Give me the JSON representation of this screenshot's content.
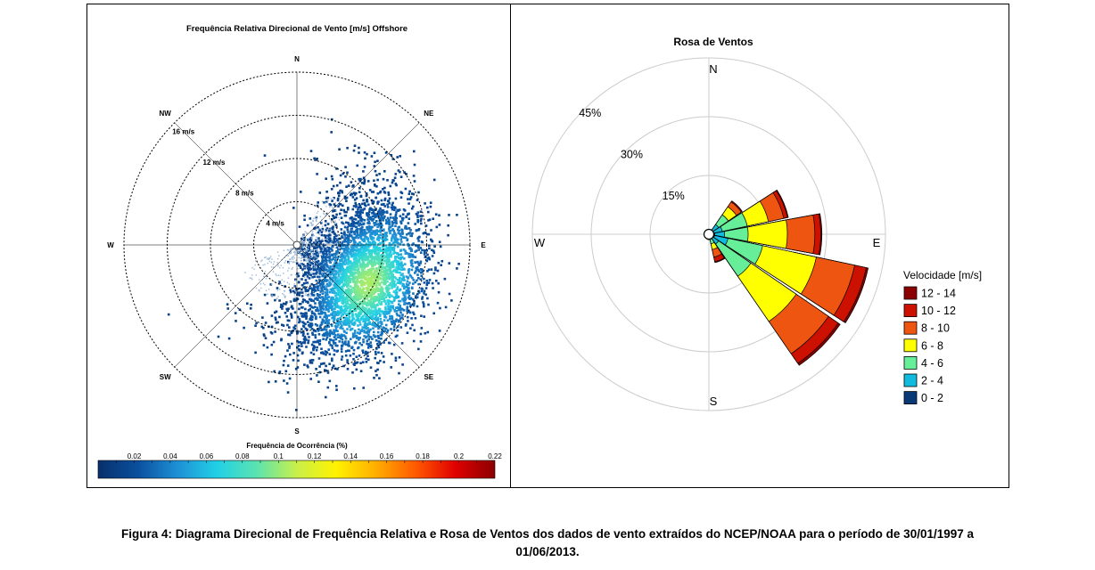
{
  "figure_caption_line1": "Figura 4: Diagrama Direcional de Frequência Relativa e Rosa de Ventos dos dados de vento extraídos  do NCEP/NOAA para o período de 30/01/1997 a",
  "figure_caption_line2": "01/06/2013.",
  "chart_data": [
    {
      "type": "scatter",
      "title": "Frequência Relativa Direcional de Vento [m/s] Offshore",
      "radial_rings": [
        4,
        8,
        12,
        16
      ],
      "radial_labels": [
        "4 m/s",
        "8 m/s",
        "12 m/s",
        "16 m/s"
      ],
      "directions": [
        "N",
        "NE",
        "E",
        "SE",
        "S",
        "SW",
        "W",
        "NW"
      ],
      "colorbar_label": "Frequência de Ocorrência (%)",
      "colorbar_ticks": [
        "0.02",
        "0.04",
        "0.06",
        "0.08",
        "0.1",
        "0.12",
        "0.14",
        "0.16",
        "0.18",
        "0.2",
        "0.22"
      ],
      "colorbar_range": [
        0,
        0.22
      ],
      "colormap": [
        "#08306b",
        "#0a4f9e",
        "#1e90d6",
        "#21d0e6",
        "#5be3b0",
        "#c8f04a",
        "#fff200",
        "#ffae00",
        "#ff5a00",
        "#e00000",
        "#8b0000"
      ],
      "distribution": {
        "center_direction_deg": 118,
        "center_speed_ms": 7.5,
        "direction_spread_deg": 55,
        "speed_spread_ms": 5
      }
    },
    {
      "type": "windrose",
      "title": "Rosa de Ventos",
      "directions": [
        "N",
        "E",
        "S",
        "W"
      ],
      "radial_rings": [
        15,
        30,
        45
      ],
      "radial_labels": [
        "15%",
        "30%",
        "45%"
      ],
      "legend_title": "Velocidade [m/s]",
      "legend_placement": "right",
      "speed_bins": [
        {
          "label": "12 - 14",
          "color": "#8b0000"
        },
        {
          "label": "10 - 12",
          "color": "#cc1100"
        },
        {
          "label": "8 - 10",
          "color": "#ee5511"
        },
        {
          "label": "6 - 8",
          "color": "#ffff00"
        },
        {
          "label": "4 - 6",
          "color": "#66ee99"
        },
        {
          "label": "2 - 4",
          "color": "#11bbdd"
        },
        {
          "label": "0 - 2",
          "color": "#0a3a75"
        }
      ],
      "petals": [
        {
          "direction_deg": 45,
          "cumulative": [
            1,
            3,
            6,
            8.5,
            10,
            10.3,
            10.3
          ]
        },
        {
          "direction_deg": 67.5,
          "cumulative": [
            1,
            3.5,
            10,
            15.5,
            19.5,
            20.5,
            20.7
          ]
        },
        {
          "direction_deg": 90,
          "cumulative": [
            1.5,
            4,
            10,
            20,
            27,
            28.5,
            28.8
          ]
        },
        {
          "direction_deg": 112.5,
          "cumulative": [
            1.5,
            5,
            14,
            28,
            38,
            41,
            41.5
          ]
        },
        {
          "direction_deg": 135,
          "cumulative": [
            1,
            3,
            13,
            27,
            37,
            40,
            40.6
          ]
        },
        {
          "direction_deg": 157.5,
          "cumulative": [
            0.5,
            1,
            2.5,
            4,
            6,
            7.2,
            7.4
          ]
        },
        {
          "direction_deg": 180,
          "cumulative": [
            0.3,
            0.5,
            0.8,
            1.2,
            1.3,
            1.4,
            1.4
          ]
        }
      ]
    }
  ]
}
